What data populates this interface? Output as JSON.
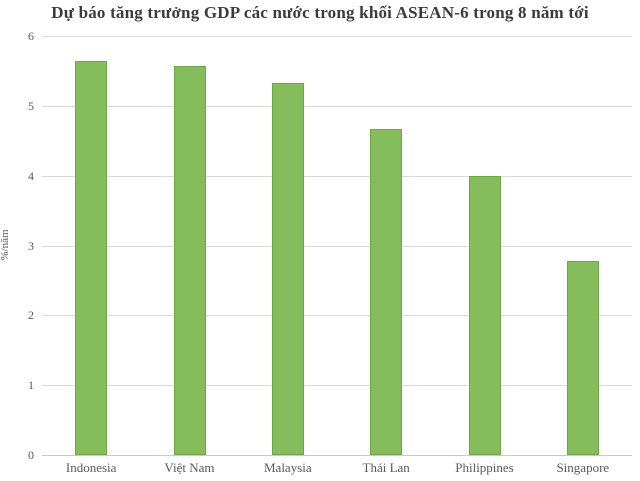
{
  "chart_data": {
    "type": "bar",
    "title": "Dự báo tăng trưởng GDP các nước trong khối ASEAN-6 trong 8 năm tới",
    "categories": [
      "Indonesia",
      "Việt Nam",
      "Malaysia",
      "Thái Lan",
      "Philippines",
      "Singapore"
    ],
    "values": [
      5.64,
      5.57,
      5.33,
      4.67,
      4.0,
      2.78
    ],
    "xlabel": "",
    "ylabel": "%/năm",
    "ylim": [
      0,
      6
    ],
    "yticks": [
      0,
      1,
      2,
      3,
      4,
      5,
      6
    ],
    "grid": true,
    "legend_position": "none",
    "colors": {
      "bar_fill": "#85bd5c",
      "bar_border": "#71a643",
      "gridline": "#d9d9d9",
      "axis_line": "#c9c9c9",
      "tick_text": "#595959",
      "title_text": "#3b3b3b",
      "background": "#ffffff"
    }
  }
}
